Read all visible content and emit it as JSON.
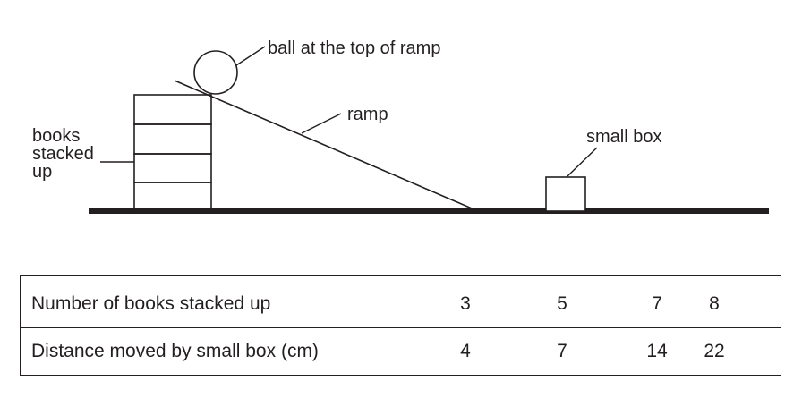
{
  "diagram": {
    "labels": {
      "ball": "ball at the top of ramp",
      "ramp": "ramp",
      "books_line1": "books",
      "books_line2": "stacked",
      "books_line3": "up",
      "box": "small box"
    }
  },
  "table": {
    "rows": [
      {
        "label": "Number of books stacked up",
        "values": [
          "3",
          "5",
          "7",
          "8"
        ]
      },
      {
        "label": "Distance moved by small box (cm)",
        "values": [
          "4",
          "7",
          "14",
          "22"
        ]
      }
    ]
  }
}
